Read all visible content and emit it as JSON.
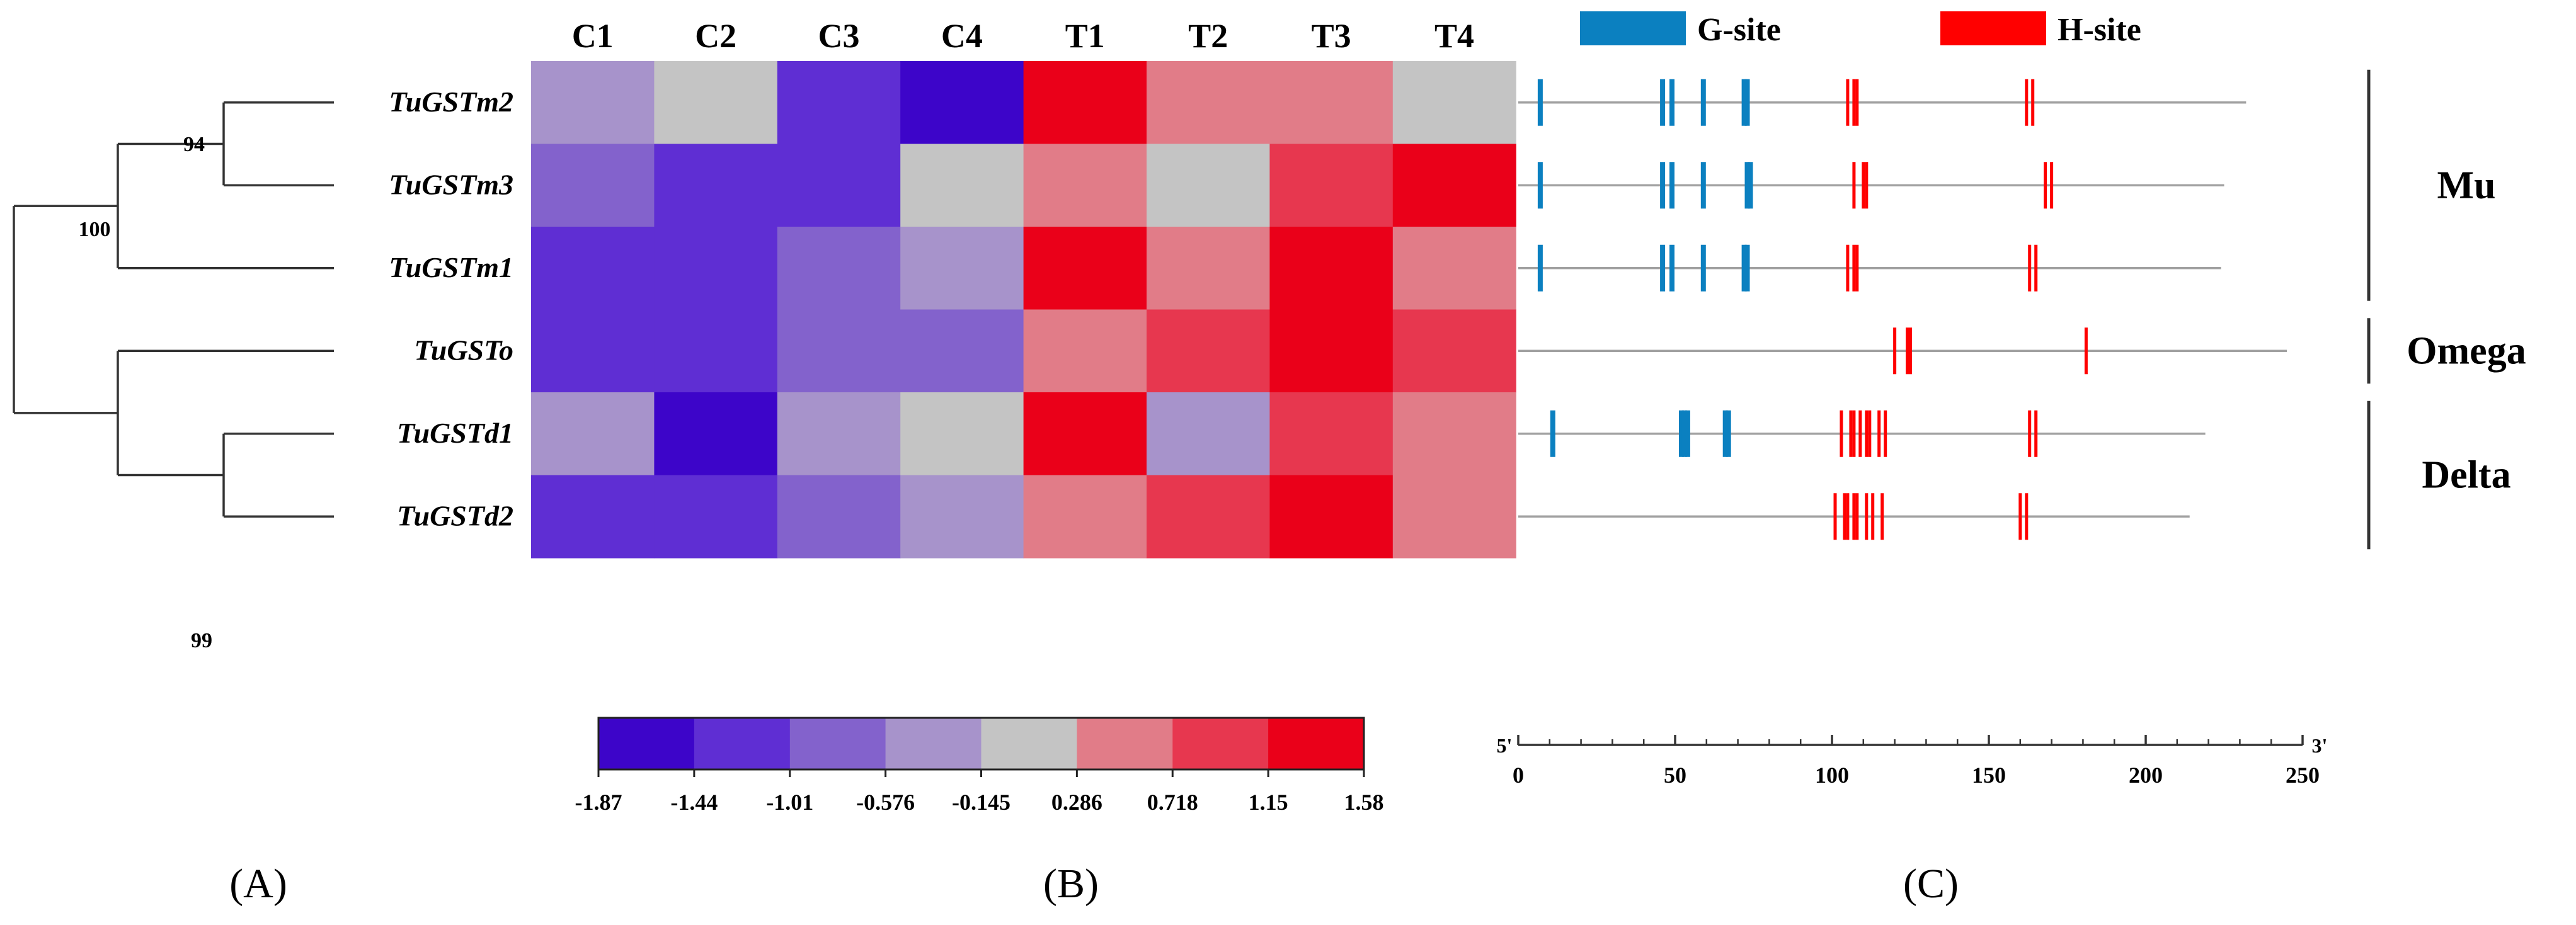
{
  "panels": {
    "tree": {
      "panel_label": "(A)",
      "genes": [
        "TuGSTm2",
        "TuGSTm3",
        "TuGSTm1",
        "TuGSTo",
        "TuGSTd1",
        "TuGSTd2"
      ],
      "bootstrap": {
        "m2_m3": "94",
        "mu_clade": "100",
        "d1_d2": "99"
      }
    },
    "heatmap": {
      "panel_label": "(B)",
      "columns": [
        "C1",
        "C2",
        "C3",
        "C4",
        "T1",
        "T2",
        "T3",
        "T4"
      ],
      "palette": [
        "#3d05c9",
        "#5f2ed3",
        "#8362cc",
        "#a793cb",
        "#c4c4c4",
        "#e17c88",
        "#e7374f",
        "#ea0019"
      ],
      "scale_ticks": [
        "-1.87",
        "-1.44",
        "-1.01",
        "-0.576",
        "-0.145",
        "0.286",
        "0.718",
        "1.15",
        "1.58"
      ],
      "levels": [
        [
          3,
          4,
          1,
          0,
          7,
          5,
          5,
          4
        ],
        [
          2,
          1,
          1,
          4,
          5,
          4,
          6,
          7
        ],
        [
          1,
          1,
          2,
          3,
          7,
          5,
          7,
          5
        ],
        [
          1,
          1,
          2,
          2,
          5,
          6,
          7,
          6
        ],
        [
          3,
          0,
          3,
          4,
          7,
          3,
          6,
          5
        ],
        [
          1,
          1,
          2,
          3,
          5,
          6,
          7,
          5
        ]
      ]
    },
    "motifs": {
      "panel_label": "(C)",
      "legend": [
        {
          "label": "G-site",
          "color": "#0b80c0"
        },
        {
          "label": "H-site",
          "color": "#ff0000"
        }
      ],
      "axis": {
        "five_prime": "5'",
        "three_prime": "3'",
        "ticks": [
          "0",
          "50",
          "100",
          "150",
          "200",
          "250"
        ],
        "tick_values": [
          0,
          50,
          100,
          150,
          200,
          250
        ],
        "max": 250
      },
      "proteins": [
        {
          "gene": "TuGSTm2",
          "length": 232,
          "g_sites": [
            7,
            46,
            49,
            59,
            72,
            73
          ],
          "h_sites": [
            105,
            107,
            108,
            162,
            164
          ]
        },
        {
          "gene": "TuGSTm3",
          "length": 225,
          "g_sites": [
            7,
            46,
            49,
            59,
            73,
            74
          ],
          "h_sites": [
            107,
            110,
            111,
            168,
            170
          ]
        },
        {
          "gene": "TuGSTm1",
          "length": 224,
          "g_sites": [
            7,
            46,
            49,
            59,
            72,
            73
          ],
          "h_sites": [
            105,
            107,
            108,
            163,
            165
          ]
        },
        {
          "gene": "TuGSTo",
          "length": 245,
          "g_sites": [],
          "h_sites": [
            120,
            124,
            125,
            181
          ]
        },
        {
          "gene": "TuGSTd1",
          "length": 219,
          "g_sites": [
            11,
            52,
            53,
            54,
            66,
            67
          ],
          "h_sites": [
            103,
            106,
            107,
            109,
            111,
            112,
            115,
            117,
            163,
            165
          ]
        },
        {
          "gene": "TuGSTd2",
          "length": 214,
          "g_sites": [],
          "h_sites": [
            101,
            104,
            105,
            107,
            108,
            111,
            113,
            116,
            160,
            162
          ]
        }
      ],
      "classes": [
        {
          "label": "Mu",
          "from_row": 0,
          "to_row": 2
        },
        {
          "label": "Omega",
          "from_row": 3,
          "to_row": 3
        },
        {
          "label": "Delta",
          "from_row": 4,
          "to_row": 5
        }
      ]
    }
  }
}
